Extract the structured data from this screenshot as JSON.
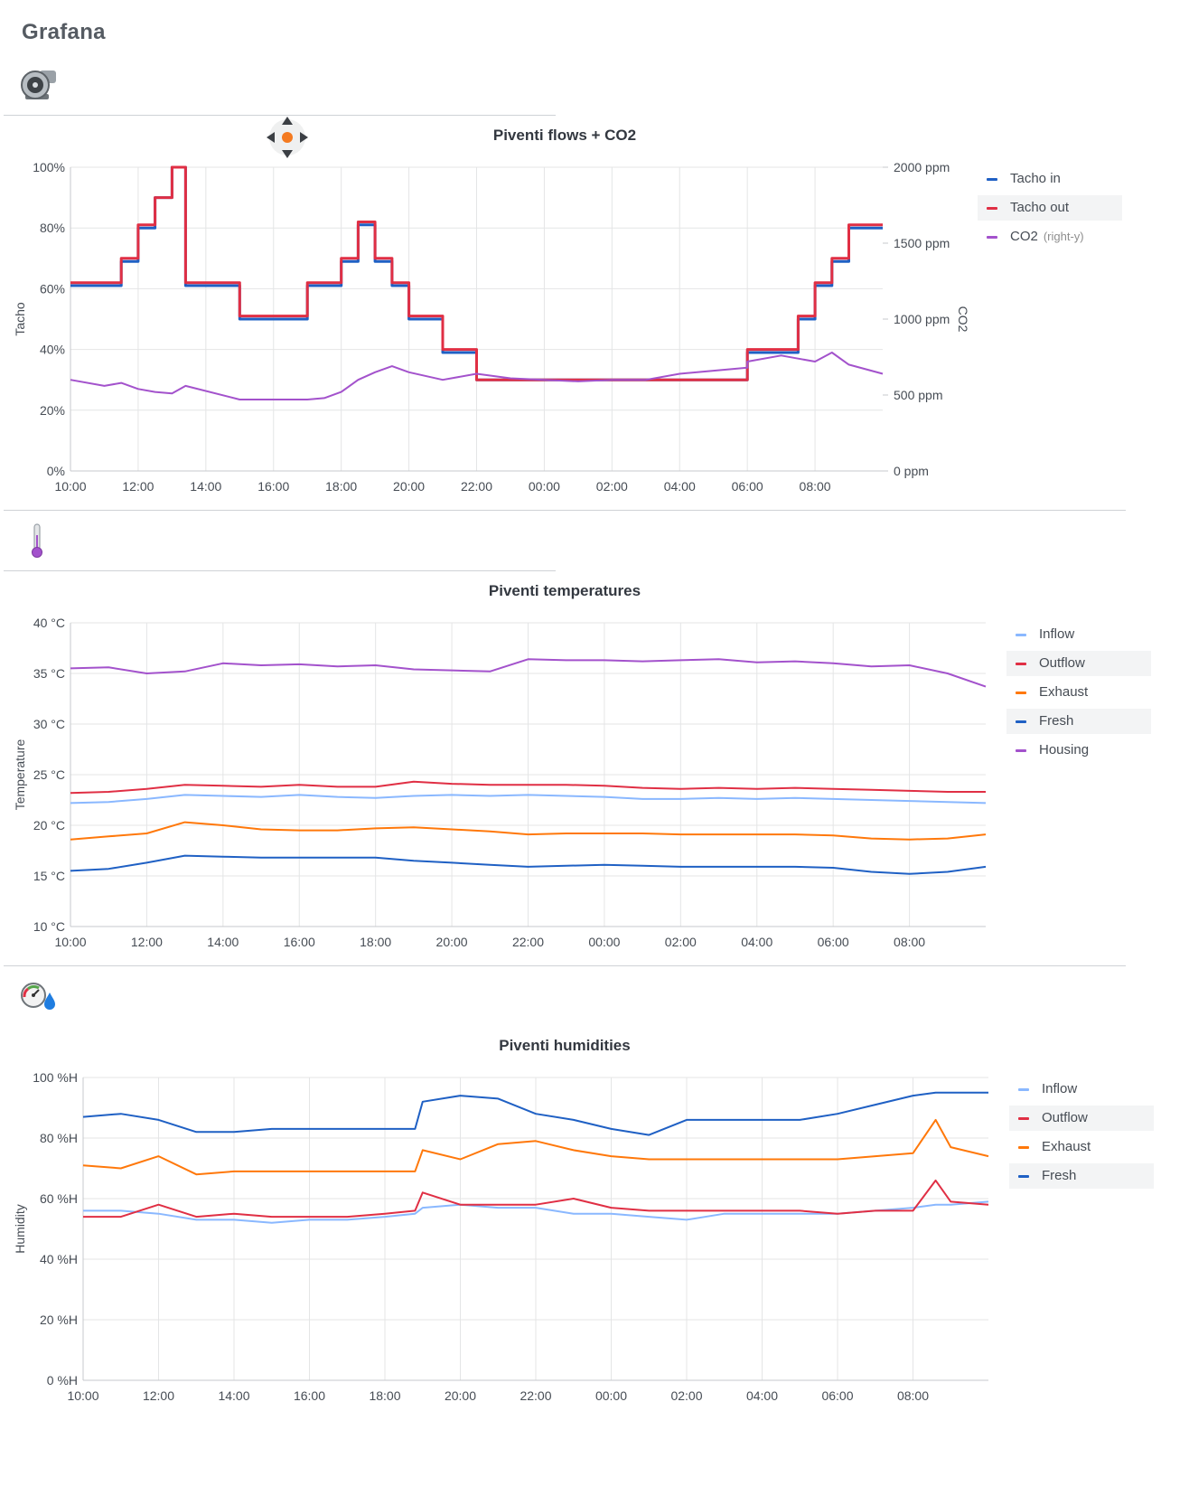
{
  "brand": "Grafana",
  "rows": [
    {
      "icon": "turbine-fan-icon"
    },
    {
      "icon": "thermometer-icon"
    },
    {
      "icon": "hygrometer-drop-icon"
    }
  ],
  "panels": [
    {
      "title": "Piventi flows + CO2",
      "legend": [
        {
          "label": "Tacho in",
          "color": "#1f60c4",
          "note": ""
        },
        {
          "label": "Tacho out",
          "color": "#e02f44",
          "note": ""
        },
        {
          "label": "CO2",
          "color": "#a352cc",
          "note": "(right-y)"
        }
      ]
    },
    {
      "title": "Piventi temperatures",
      "legend": [
        {
          "label": "Inflow",
          "color": "#8ab8ff"
        },
        {
          "label": "Outflow",
          "color": "#e02f44"
        },
        {
          "label": "Exhaust",
          "color": "#ff780a"
        },
        {
          "label": "Fresh",
          "color": "#1f60c4"
        },
        {
          "label": "Housing",
          "color": "#a352cc"
        }
      ]
    },
    {
      "title": "Piventi humidities",
      "legend": [
        {
          "label": "Inflow",
          "color": "#8ab8ff"
        },
        {
          "label": "Outflow",
          "color": "#e02f44"
        },
        {
          "label": "Exhaust",
          "color": "#ff780a"
        },
        {
          "label": "Fresh",
          "color": "#1f60c4"
        }
      ]
    }
  ],
  "chart_data": [
    {
      "type": "line",
      "title": "Piventi flows + CO2",
      "ylabel": "Tacho",
      "y2label": "CO2",
      "x_ticks": [
        "10:00",
        "12:00",
        "14:00",
        "16:00",
        "18:00",
        "20:00",
        "22:00",
        "00:00",
        "02:00",
        "04:00",
        "06:00",
        "08:00"
      ],
      "y_ticks": [
        "0%",
        "20%",
        "40%",
        "60%",
        "80%",
        "100%"
      ],
      "y2_ticks": [
        "0 ppm",
        "500 ppm",
        "1000 ppm",
        "1500 ppm",
        "2000 ppm"
      ],
      "ylim": [
        0,
        100
      ],
      "y2lim": [
        0,
        2000
      ],
      "grid": true,
      "legend_position": "right",
      "x_hours": [
        0,
        1,
        1.5,
        2,
        2.5,
        3,
        3.4,
        5,
        7,
        7.5,
        8,
        8.5,
        9,
        9.5,
        10,
        11,
        12,
        13,
        14,
        15,
        16,
        17,
        18,
        19,
        20,
        20,
        21,
        21.5,
        22,
        22.5,
        23,
        24
      ],
      "series": [
        {
          "name": "Tacho in",
          "axis": "left",
          "values": [
            61,
            61,
            69,
            80,
            90,
            100,
            61,
            50,
            61,
            61,
            69,
            81,
            69,
            61,
            50,
            39,
            30,
            30,
            30,
            30,
            30,
            30,
            30,
            30,
            39,
            39,
            39,
            50,
            61,
            69,
            80,
            80
          ]
        },
        {
          "name": "Tacho out",
          "axis": "left",
          "values": [
            62,
            62,
            70,
            81,
            90,
            100,
            62,
            51,
            62,
            62,
            70,
            82,
            70,
            62,
            51,
            40,
            30,
            30,
            30,
            30,
            30,
            30,
            30,
            30,
            40,
            40,
            40,
            51,
            62,
            70,
            81,
            81
          ]
        },
        {
          "name": "CO2",
          "axis": "right",
          "values": [
            600,
            560,
            580,
            540,
            520,
            510,
            560,
            470,
            470,
            480,
            520,
            600,
            650,
            690,
            650,
            600,
            640,
            610,
            600,
            590,
            600,
            600,
            640,
            660,
            680,
            720,
            760,
            740,
            720,
            780,
            700,
            640
          ]
        }
      ]
    },
    {
      "type": "line",
      "title": "Piventi temperatures",
      "ylabel": "Temperature",
      "x_ticks": [
        "10:00",
        "12:00",
        "14:00",
        "16:00",
        "18:00",
        "20:00",
        "22:00",
        "00:00",
        "02:00",
        "04:00",
        "06:00",
        "08:00"
      ],
      "y_ticks": [
        "10 °C",
        "15 °C",
        "20 °C",
        "25 °C",
        "30 °C",
        "35 °C",
        "40 °C"
      ],
      "ylim": [
        10,
        40
      ],
      "grid": true,
      "legend_position": "right",
      "x_hours": [
        0,
        1,
        2,
        3,
        4,
        5,
        6,
        7,
        8,
        9,
        10,
        11,
        12,
        13,
        14,
        15,
        16,
        17,
        18,
        19,
        20,
        21,
        22,
        23,
        24
      ],
      "series": [
        {
          "name": "Inflow",
          "values": [
            22.2,
            22.3,
            22.6,
            23.0,
            22.9,
            22.8,
            23.0,
            22.8,
            22.7,
            22.9,
            23.0,
            22.9,
            23.0,
            22.9,
            22.8,
            22.6,
            22.6,
            22.7,
            22.6,
            22.7,
            22.6,
            22.5,
            22.4,
            22.3,
            22.2
          ]
        },
        {
          "name": "Outflow",
          "values": [
            23.2,
            23.3,
            23.6,
            24.0,
            23.9,
            23.8,
            24.0,
            23.8,
            23.8,
            24.3,
            24.1,
            24.0,
            24.0,
            24.0,
            23.9,
            23.7,
            23.6,
            23.7,
            23.6,
            23.7,
            23.6,
            23.5,
            23.4,
            23.3,
            23.3
          ]
        },
        {
          "name": "Exhaust",
          "values": [
            18.6,
            18.9,
            19.2,
            20.3,
            20.0,
            19.6,
            19.5,
            19.5,
            19.7,
            19.8,
            19.6,
            19.4,
            19.1,
            19.2,
            19.2,
            19.2,
            19.1,
            19.1,
            19.1,
            19.1,
            19.0,
            18.7,
            18.6,
            18.7,
            19.1
          ]
        },
        {
          "name": "Fresh",
          "values": [
            15.5,
            15.7,
            16.3,
            17.0,
            16.9,
            16.8,
            16.8,
            16.8,
            16.8,
            16.5,
            16.3,
            16.1,
            15.9,
            16.0,
            16.1,
            16.0,
            15.9,
            15.9,
            15.9,
            15.9,
            15.8,
            15.4,
            15.2,
            15.4,
            15.9
          ]
        },
        {
          "name": "Housing",
          "values": [
            35.5,
            35.6,
            35.0,
            35.2,
            36.0,
            35.8,
            35.9,
            35.7,
            35.8,
            35.4,
            35.3,
            35.2,
            36.4,
            36.3,
            36.3,
            36.2,
            36.3,
            36.4,
            36.1,
            36.2,
            36.0,
            35.7,
            35.8,
            35.0,
            33.7
          ]
        }
      ]
    },
    {
      "type": "line",
      "title": "Piventi humidities",
      "ylabel": "Humidity",
      "x_ticks": [
        "10:00",
        "12:00",
        "14:00",
        "16:00",
        "18:00",
        "20:00",
        "22:00",
        "00:00",
        "02:00",
        "04:00",
        "06:00",
        "08:00"
      ],
      "y_ticks": [
        "0 %H",
        "20 %H",
        "40 %H",
        "60 %H",
        "80 %H",
        "100 %H"
      ],
      "ylim": [
        0,
        100
      ],
      "grid": true,
      "legend_position": "right",
      "x_hours": [
        0,
        1,
        2,
        3,
        4,
        5,
        6,
        7,
        8,
        8.8,
        9,
        10,
        11,
        12,
        13,
        14,
        15,
        16,
        17,
        18,
        19,
        20,
        21,
        22,
        22.6,
        23,
        24
      ],
      "series": [
        {
          "name": "Inflow",
          "values": [
            56,
            56,
            55,
            53,
            53,
            52,
            53,
            53,
            54,
            55,
            57,
            58,
            57,
            57,
            55,
            55,
            54,
            53,
            55,
            55,
            55,
            55,
            56,
            57,
            58,
            58,
            59
          ]
        },
        {
          "name": "Outflow",
          "values": [
            54,
            54,
            58,
            54,
            55,
            54,
            54,
            54,
            55,
            56,
            62,
            58,
            58,
            58,
            60,
            57,
            56,
            56,
            56,
            56,
            56,
            55,
            56,
            56,
            66,
            59,
            58
          ]
        },
        {
          "name": "Exhaust",
          "values": [
            71,
            70,
            74,
            68,
            69,
            69,
            69,
            69,
            69,
            69,
            76,
            73,
            78,
            79,
            76,
            74,
            73,
            73,
            73,
            73,
            73,
            73,
            74,
            75,
            86,
            77,
            74
          ]
        },
        {
          "name": "Fresh",
          "values": [
            87,
            88,
            86,
            82,
            82,
            83,
            83,
            83,
            83,
            83,
            92,
            94,
            93,
            88,
            86,
            83,
            81,
            86,
            86,
            86,
            86,
            88,
            91,
            94,
            95,
            95,
            95
          ]
        }
      ]
    }
  ]
}
